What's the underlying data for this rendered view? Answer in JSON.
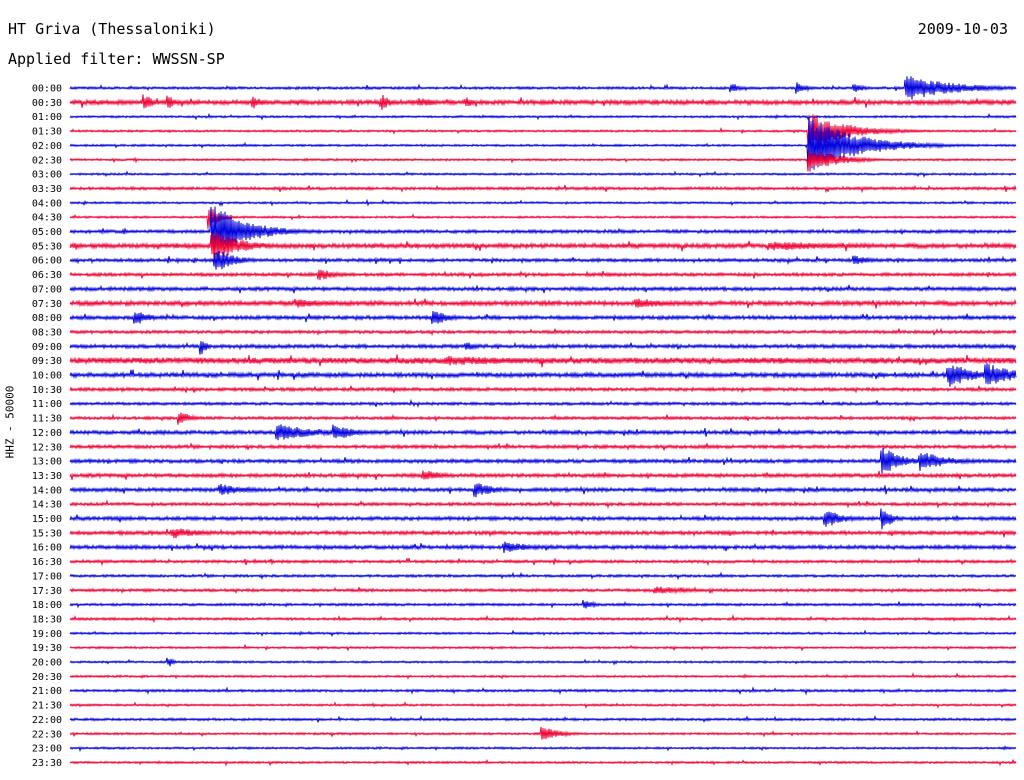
{
  "header": {
    "station": "HT Griva (Thessaloniki)",
    "date": "2009-10-03",
    "filter": "Applied filter: WWSSN-SP"
  },
  "chart_data": {
    "type": "line",
    "title": "HT Griva (Thessaloniki)",
    "ylabel": "HHZ - 50000",
    "row_colors": [
      "#0000dd",
      "#ee0033"
    ],
    "categories": [
      "00:00",
      "00:30",
      "01:00",
      "01:30",
      "02:00",
      "02:30",
      "03:00",
      "03:30",
      "04:00",
      "04:30",
      "05:00",
      "05:30",
      "06:00",
      "06:30",
      "07:00",
      "07:30",
      "08:00",
      "08:30",
      "09:00",
      "09:30",
      "10:00",
      "10:30",
      "11:00",
      "11:30",
      "12:00",
      "12:30",
      "13:00",
      "13:30",
      "14:00",
      "14:30",
      "15:00",
      "15:30",
      "16:00",
      "16:30",
      "17:00",
      "17:30",
      "18:00",
      "18:30",
      "19:00",
      "19:30",
      "20:00",
      "20:30",
      "21:00",
      "21:30",
      "22:00",
      "22:30",
      "23:00",
      "23:30"
    ],
    "baseline_noise": [
      1.2,
      2.2,
      1.0,
      1.0,
      1.0,
      1.0,
      1.0,
      1.4,
      1.0,
      1.0,
      1.6,
      2.2,
      1.6,
      1.6,
      1.8,
      2.2,
      1.8,
      1.5,
      1.8,
      3.0,
      2.2,
      1.6,
      1.4,
      1.4,
      1.8,
      1.6,
      1.8,
      1.8,
      1.8,
      1.5,
      1.8,
      1.8,
      1.8,
      1.4,
      1.2,
      1.4,
      1.2,
      1.2,
      1.0,
      1.0,
      1.0,
      1.0,
      1.2,
      1.0,
      1.2,
      1.0,
      1.0,
      1.0
    ],
    "events": [
      {
        "row": 0,
        "t": 0.885,
        "amp": 13,
        "dur": 0.05
      },
      {
        "row": 0,
        "t": 0.77,
        "amp": 6,
        "dur": 0.01
      },
      {
        "row": 0,
        "t": 0.7,
        "amp": 5,
        "dur": 0.01
      },
      {
        "row": 0,
        "t": 0.83,
        "amp": 5,
        "dur": 0.01
      },
      {
        "row": 1,
        "t": 0.08,
        "amp": 8,
        "dur": 0.01
      },
      {
        "row": 1,
        "t": 0.105,
        "amp": 7,
        "dur": 0.01
      },
      {
        "row": 1,
        "t": 0.33,
        "amp": 8,
        "dur": 0.01
      },
      {
        "row": 1,
        "t": 0.195,
        "amp": 6,
        "dur": 0.01
      },
      {
        "row": 1,
        "t": 0.37,
        "amp": 5,
        "dur": 0.02
      },
      {
        "row": 1,
        "t": 0.42,
        "amp": 5,
        "dur": 0.01
      },
      {
        "row": 3,
        "t": 0.783,
        "amp": 18,
        "dur": 0.04
      },
      {
        "row": 4,
        "t": 0.783,
        "amp": 28,
        "dur": 0.05
      },
      {
        "row": 5,
        "t": 0.783,
        "amp": 12,
        "dur": 0.03
      },
      {
        "row": 9,
        "t": 0.148,
        "amp": 12,
        "dur": 0.01
      },
      {
        "row": 10,
        "t": 0.152,
        "amp": 28,
        "dur": 0.035
      },
      {
        "row": 11,
        "t": 0.152,
        "amp": 16,
        "dur": 0.03
      },
      {
        "row": 12,
        "t": 0.155,
        "amp": 12,
        "dur": 0.02
      },
      {
        "row": 11,
        "t": 0.74,
        "amp": 5,
        "dur": 0.09
      },
      {
        "row": 12,
        "t": 0.83,
        "amp": 5,
        "dur": 0.02
      },
      {
        "row": 13,
        "t": 0.265,
        "amp": 6,
        "dur": 0.02
      },
      {
        "row": 15,
        "t": 0.24,
        "amp": 5,
        "dur": 0.04
      },
      {
        "row": 15,
        "t": 0.6,
        "amp": 5,
        "dur": 0.04
      },
      {
        "row": 16,
        "t": 0.07,
        "amp": 8,
        "dur": 0.015
      },
      {
        "row": 16,
        "t": 0.385,
        "amp": 9,
        "dur": 0.015
      },
      {
        "row": 18,
        "t": 0.14,
        "amp": 9,
        "dur": 0.005
      },
      {
        "row": 18,
        "t": 0.42,
        "amp": 5,
        "dur": 0.01
      },
      {
        "row": 19,
        "t": 0.4,
        "amp": 5,
        "dur": 0.12
      },
      {
        "row": 20,
        "t": 0.93,
        "amp": 12,
        "dur": 0.03
      },
      {
        "row": 20,
        "t": 0.97,
        "amp": 12,
        "dur": 0.03
      },
      {
        "row": 23,
        "t": 0.117,
        "amp": 8,
        "dur": 0.01
      },
      {
        "row": 24,
        "t": 0.22,
        "amp": 9,
        "dur": 0.04
      },
      {
        "row": 24,
        "t": 0.28,
        "amp": 9,
        "dur": 0.02
      },
      {
        "row": 26,
        "t": 0.86,
        "amp": 14,
        "dur": 0.02
      },
      {
        "row": 26,
        "t": 0.9,
        "amp": 10,
        "dur": 0.03
      },
      {
        "row": 27,
        "t": 0.375,
        "amp": 6,
        "dur": 0.02
      },
      {
        "row": 28,
        "t": 0.16,
        "amp": 6,
        "dur": 0.03
      },
      {
        "row": 28,
        "t": 0.43,
        "amp": 8,
        "dur": 0.02
      },
      {
        "row": 30,
        "t": 0.8,
        "amp": 9,
        "dur": 0.02
      },
      {
        "row": 30,
        "t": 0.86,
        "amp": 12,
        "dur": 0.01
      },
      {
        "row": 31,
        "t": 0.11,
        "amp": 6,
        "dur": 0.03
      },
      {
        "row": 32,
        "t": 0.46,
        "amp": 6,
        "dur": 0.03
      },
      {
        "row": 35,
        "t": 0.62,
        "amp": 4,
        "dur": 0.04
      },
      {
        "row": 36,
        "t": 0.545,
        "amp": 5,
        "dur": 0.01
      },
      {
        "row": 40,
        "t": 0.105,
        "amp": 5,
        "dur": 0.005
      },
      {
        "row": 45,
        "t": 0.5,
        "amp": 7,
        "dur": 0.02
      }
    ]
  }
}
